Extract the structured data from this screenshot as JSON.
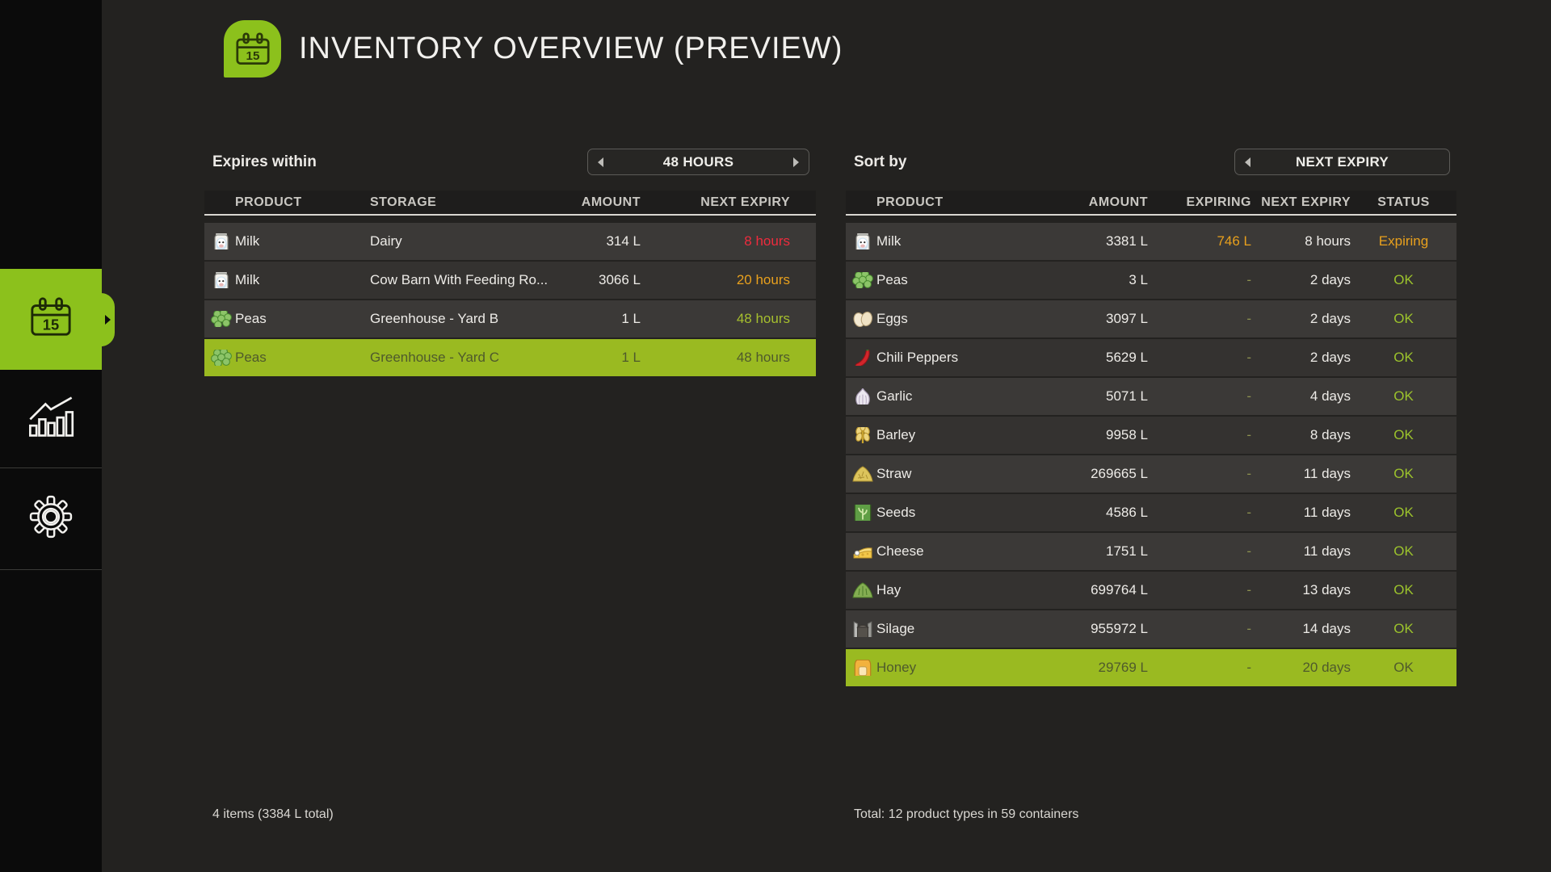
{
  "header": {
    "title": "INVENTORY OVERVIEW (PREVIEW)"
  },
  "colors": {
    "bg": "#232220",
    "sidebar-bg": "#0b0b0b",
    "accent": "#8cc11c",
    "row-selected": "#9aba21",
    "row-odd": "#3b3937",
    "row-even": "#343230",
    "header-bg": "#1e1d1c",
    "header-line": "#d8d6d1",
    "text": "#edebe7",
    "text-muted": "#c9c7c2",
    "red": "#ee2b3d",
    "orange": "#e8a01d",
    "lime": "#a6bf2e",
    "ok": "#9cc32c",
    "dash": "#8d9150",
    "selected-text": "#4f5a2c"
  },
  "sidebar": {
    "items": [
      {
        "id": "inventory",
        "icon": "calendar",
        "active": true
      },
      {
        "id": "statistics",
        "icon": "bar-chart",
        "active": false
      },
      {
        "id": "settings",
        "icon": "gear",
        "active": false
      }
    ]
  },
  "left_panel": {
    "filter_label": "Expires within",
    "filter_value": "48 HOURS",
    "columns": [
      "PRODUCT",
      "STORAGE",
      "AMOUNT",
      "NEXT EXPIRY"
    ],
    "rows": [
      {
        "product": "Milk",
        "icon": "milk",
        "storage": "Dairy",
        "amount": "314 L",
        "expiry": "8 hours",
        "expiry_color": "red",
        "selected": false
      },
      {
        "product": "Milk",
        "icon": "milk",
        "storage": "Cow Barn With Feeding Ro...",
        "amount": "3066 L",
        "expiry": "20 hours",
        "expiry_color": "orange",
        "selected": false
      },
      {
        "product": "Peas",
        "icon": "peas",
        "storage": "Greenhouse - Yard B",
        "amount": "1 L",
        "expiry": "48 hours",
        "expiry_color": "lime",
        "selected": false
      },
      {
        "product": "Peas",
        "icon": "peas",
        "storage": "Greenhouse - Yard C",
        "amount": "1 L",
        "expiry": "48 hours",
        "expiry_color": "lime",
        "selected": true
      }
    ],
    "footer": "4 items (3384 L total)"
  },
  "right_panel": {
    "sort_label": "Sort by",
    "sort_value": "NEXT EXPIRY",
    "columns": [
      "PRODUCT",
      "AMOUNT",
      "EXPIRING",
      "NEXT EXPIRY",
      "STATUS"
    ],
    "rows": [
      {
        "product": "Milk",
        "icon": "milk",
        "amount": "3381 L",
        "expiring": "746 L",
        "expiry": "8 hours",
        "status": "Expiring",
        "selected": false
      },
      {
        "product": "Peas",
        "icon": "peas",
        "amount": "3 L",
        "expiring": "-",
        "expiry": "2 days",
        "status": "OK",
        "selected": false
      },
      {
        "product": "Eggs",
        "icon": "eggs",
        "amount": "3097 L",
        "expiring": "-",
        "expiry": "2 days",
        "status": "OK",
        "selected": false
      },
      {
        "product": "Chili Peppers",
        "icon": "chili",
        "amount": "5629 L",
        "expiring": "-",
        "expiry": "2 days",
        "status": "OK",
        "selected": false
      },
      {
        "product": "Garlic",
        "icon": "garlic",
        "amount": "5071 L",
        "expiring": "-",
        "expiry": "4 days",
        "status": "OK",
        "selected": false
      },
      {
        "product": "Barley",
        "icon": "barley",
        "amount": "9958 L",
        "expiring": "-",
        "expiry": "8 days",
        "status": "OK",
        "selected": false
      },
      {
        "product": "Straw",
        "icon": "straw",
        "amount": "269665 L",
        "expiring": "-",
        "expiry": "11 days",
        "status": "OK",
        "selected": false
      },
      {
        "product": "Seeds",
        "icon": "seeds",
        "amount": "4586 L",
        "expiring": "-",
        "expiry": "11 days",
        "status": "OK",
        "selected": false
      },
      {
        "product": "Cheese",
        "icon": "cheese",
        "amount": "1751 L",
        "expiring": "-",
        "expiry": "11 days",
        "status": "OK",
        "selected": false
      },
      {
        "product": "Hay",
        "icon": "hay",
        "amount": "699764 L",
        "expiring": "-",
        "expiry": "13 days",
        "status": "OK",
        "selected": false
      },
      {
        "product": "Silage",
        "icon": "silage",
        "amount": "955972 L",
        "expiring": "-",
        "expiry": "14 days",
        "status": "OK",
        "selected": false
      },
      {
        "product": "Honey",
        "icon": "honey",
        "amount": "29769 L",
        "expiring": "-",
        "expiry": "20 days",
        "status": "OK",
        "selected": true
      }
    ],
    "footer": "Total: 12 product types in 59 containers"
  }
}
